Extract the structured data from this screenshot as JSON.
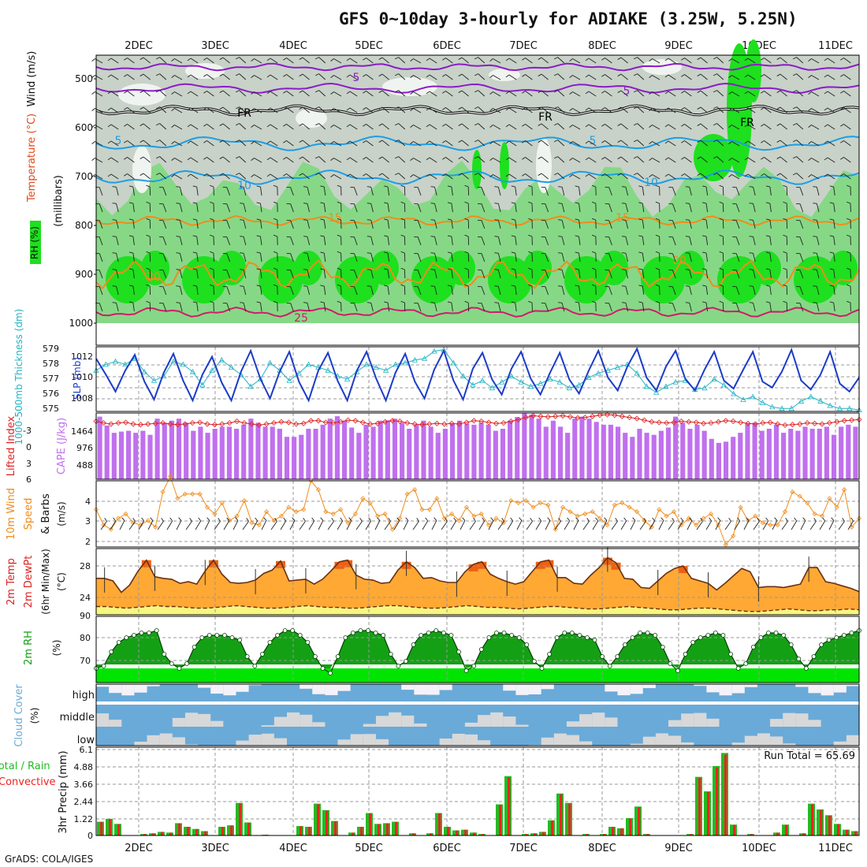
{
  "title": "GFS 0~10day 3-hourly for ADIAKE (3.25W, 5.25N)",
  "footer": "GrADS: COLA/IGES",
  "days": [
    "2DEC",
    "3DEC",
    "4DEC",
    "5DEC",
    "6DEC",
    "7DEC",
    "8DEC",
    "9DEC",
    "10DEC",
    "11DEC"
  ],
  "panels": {
    "upper": {
      "ylabel_unit": "(millibars)",
      "ylabel_wind": "Wind (m/s)",
      "ylabel_temp": "Temperature (°C)",
      "ylabel_rh": "RH (%)",
      "yticks": [
        "500",
        "600",
        "700",
        "800",
        "900",
        "1000"
      ],
      "contour_labels": [
        "5",
        "5",
        "FR",
        "FR",
        "FR",
        "5",
        "5",
        "10",
        "10",
        "15",
        "15",
        "20",
        "20",
        "25"
      ]
    },
    "thickness": {
      "ylabel_left": "1000-500mb Thickness (dm)",
      "ylabel_right": "SLP (mb)",
      "yticks_left": [
        "579",
        "578",
        "577",
        "576",
        "575"
      ],
      "yticks_right": [
        "1012",
        "1010",
        "1008"
      ]
    },
    "cape": {
      "ylabel_left": "Lifted Index",
      "ylabel_right": "CAPE (J/kg)",
      "yticks_left": [
        "-3",
        "0",
        "3",
        "6"
      ],
      "yticks_right": [
        "1464",
        "976",
        "488"
      ]
    },
    "wind10": {
      "ylabel_1": "10m Wind",
      "ylabel_2": "Speed",
      "ylabel_3": "& Barbs",
      "ylabel_unit": "(m/s)",
      "yticks": [
        "4",
        "3",
        "2"
      ]
    },
    "temp2m": {
      "ylabel_1": "2m Temp",
      "ylabel_2": "2m DewPt",
      "ylabel_3": "(6hr Min/Max)",
      "ylabel_unit": "(°C)",
      "yticks": [
        "28",
        "24"
      ]
    },
    "rh2m": {
      "ylabel": "2m RH",
      "ylabel_unit": "(%)",
      "yticks": [
        "90",
        "80",
        "70"
      ]
    },
    "cloud": {
      "ylabel": "Cloud Cover",
      "ylabel_unit": "(%)",
      "levels": [
        "high",
        "middle",
        "low"
      ]
    },
    "precip": {
      "ylabel": "3hr Precip (mm)",
      "legend_total": "Total / Rain",
      "legend_conv": "Convective",
      "run_total": "Run Total = 65.69",
      "yticks": [
        "6.1",
        "4.88",
        "3.66",
        "2.44",
        "1.22",
        "0"
      ]
    }
  },
  "colors": {
    "rh_light": "#c8d2c8",
    "rh_mid": "#86d886",
    "rh_high": "#1ee01e",
    "purple": "#8c1cc8",
    "blue": "#1c9ee6",
    "orange": "#f08c1c",
    "magenta": "#d01c6c",
    "slp": "#1c3cc8",
    "thickness": "#22b4c4",
    "cape": "#c070ee",
    "li": "#dd2222",
    "temp_fill": "#ffa834",
    "dew_fill": "#f6f680",
    "rh2m_dark": "#14a014",
    "rh2m_bright": "#00e400",
    "cloud_blue": "#6aaad8",
    "cloud_grey": "#d8d8d8",
    "precip_green": "#22bb22",
    "precip_red": "#ee2222"
  },
  "chart_data": [
    {
      "type": "line",
      "name": "slp",
      "ylim": [
        1006.5,
        1013
      ],
      "values": [
        1011.8,
        1010.2,
        1008.5,
        1010.6,
        1012.2,
        1009.5,
        1007.7,
        1010.4,
        1012.3,
        1009.6,
        1007.6,
        1010.2,
        1012.0,
        1009.4,
        1007.6,
        1010.5,
        1012.6,
        1009.8,
        1007.8,
        1010.5,
        1012.5,
        1009.5,
        1007.6,
        1010.6,
        1012.4,
        1009.6,
        1007.6,
        1010.6,
        1012.5,
        1009.8,
        1007.6,
        1010.4,
        1012.3,
        1009.5,
        1007.8,
        1010.7,
        1012.6,
        1009.6,
        1007.7,
        1010.8,
        1012.4,
        1009.7,
        1008.2,
        1010.8,
        1012.5,
        1009.8,
        1008.2,
        1010.4,
        1012.4,
        1009.7,
        1008.3,
        1010.6,
        1012.6,
        1009.9,
        1008.6,
        1011.0,
        1012.8,
        1009.9,
        1008.6,
        1011.0,
        1012.6,
        1009.8,
        1008.6,
        1010.7,
        1012.5,
        1009.6,
        1008.8,
        1010.7,
        1012.5,
        1009.5,
        1008.9,
        1010.5,
        1012.7,
        1009.6,
        1008.7,
        1010.2,
        1012.5,
        1009.3,
        1008.5,
        1009.9
      ]
    },
    {
      "type": "line",
      "name": "thickness",
      "ylim": [
        574.8,
        579.2
      ],
      "values": [
        577.6,
        578.0,
        578.2,
        578.0,
        578.4,
        577.5,
        576.9,
        577.2,
        578.2,
        578.0,
        577.5,
        576.6,
        577.6,
        578.3,
        577.8,
        577.3,
        576.5,
        577.0,
        578.1,
        577.6,
        576.9,
        577.4,
        578.0,
        577.8,
        577.6,
        577.2,
        577.0,
        577.5,
        578.0,
        577.8,
        577.6,
        578.0,
        578.1,
        578.3,
        578.4,
        578.9,
        579.0,
        578.1,
        577.2,
        576.6,
        576.9,
        576.4,
        576.8,
        577.2,
        576.8,
        576.5,
        576.7,
        577.0,
        576.8,
        576.4,
        576.6,
        577.1,
        577.4,
        577.6,
        577.8,
        578.0,
        577.4,
        576.5,
        576.1,
        576.5,
        576.8,
        576.9,
        576.3,
        576.4,
        577.0,
        576.6,
        576.0,
        575.6,
        575.8,
        575.4,
        575.1,
        575.0,
        575.0,
        575.5,
        575.8,
        575.5,
        575.2,
        575.0,
        575.0,
        574.9
      ]
    },
    {
      "type": "bar",
      "name": "cape",
      "ylim": [
        0,
        1640
      ],
      "values": [
        1550,
        1330,
        1150,
        1180,
        1200,
        1150,
        1200,
        1100,
        1500,
        1400,
        1450,
        1500,
        1400,
        1200,
        1300,
        1150,
        1250,
        1300,
        1300,
        1250,
        1350,
        1500,
        1400,
        1300,
        1300,
        1250,
        1050,
        1050,
        1100,
        1250,
        1250,
        1350,
        1500,
        1560,
        1450,
        1280,
        1150,
        1350,
        1300,
        1450,
        1460,
        1500,
        1400,
        1250,
        1350,
        1450,
        1300,
        1150,
        1250,
        1380,
        1450,
        1380,
        1350,
        1400,
        1350,
        1200,
        1250,
        1450,
        1540,
        1650,
        1600,
        1500,
        1300,
        1450,
        1300,
        1150,
        1500,
        1550,
        1500,
        1420,
        1350,
        1350,
        1300,
        1150,
        1050,
        1250,
        1150,
        1100,
        1200,
        1280,
        1550,
        1400,
        1250,
        1350,
        1200,
        1000,
        900,
        930,
        1050,
        1150,
        1380,
        1400,
        1200,
        1250,
        1350,
        1150,
        1250,
        1200,
        1300,
        1250,
        1250,
        1300,
        1100,
        1300,
        1350,
        1300
      ]
    },
    {
      "type": "line",
      "name": "lifted_index",
      "ylim": [
        -6,
        6
      ],
      "values": [
        -4.5,
        -4.2,
        -4.0,
        -4.2,
        -4.3,
        -4.0,
        -3.9,
        -4.0,
        -4.1,
        -4.2,
        -4.0,
        -3.9,
        -4.0,
        -4.2,
        -4.3,
        -4.0,
        -3.9,
        -4.0,
        -4.2,
        -4.5,
        -4.2,
        -4.0,
        -3.8,
        -4.0,
        -4.2,
        -4.4,
        -4.3,
        -4.0,
        -4.1,
        -4.6,
        -4.6,
        -4.3,
        -4.2,
        -4.4,
        -4.7,
        -4.6,
        -4.3,
        -4.0,
        -4.1,
        -4.4,
        -4.6,
        -4.5,
        -4.2,
        -4.0,
        -3.9,
        -4.0,
        -4.1,
        -4.0,
        -4.1,
        -4.0,
        -4.3,
        -4.6,
        -4.5,
        -4.3,
        -4.1,
        -4.2,
        -4.5,
        -4.8,
        -5.2,
        -5.5,
        -5.4,
        -5.3,
        -5.4,
        -5.5,
        -5.3,
        -5.1,
        -5.2,
        -5.4,
        -5.6,
        -5.7,
        -5.6,
        -5.4,
        -5.2,
        -5.0,
        -4.7,
        -4.4,
        -4.3,
        -4.2,
        -4.3,
        -4.5,
        -4.4,
        -4.3,
        -4.1,
        -4.2,
        -4.4,
        -4.6,
        -4.5,
        -4.3,
        -4.1,
        -4.0,
        -4.2,
        -4.3,
        -4.0,
        -3.8,
        -3.9,
        -4.0,
        -4.2,
        -4.1,
        -4.0,
        -4.2,
        -4.4,
        -4.6,
        -4.7,
        -4.8
      ]
    },
    {
      "type": "line",
      "name": "wind10_speed",
      "ylim": [
        1.8,
        4.8
      ],
      "values": [
        3.5,
        2.8,
        2.6,
        3.1,
        3.3,
        2.9,
        2.8,
        3.0,
        2.7,
        4.3,
        5.0,
        4.0,
        4.2,
        4.2,
        4.2,
        3.6,
        3.3,
        3.8,
        3.0,
        3.2,
        3.9,
        2.9,
        2.8,
        3.4,
        3.0,
        3.2,
        3.6,
        3.4,
        3.5,
        4.8,
        4.4,
        3.4,
        3.3,
        3.5,
        2.9,
        3.3,
        4.0,
        3.8,
        3.2,
        3.3,
        2.6,
        3.1,
        4.2,
        4.4,
        3.5,
        3.5,
        4.0,
        3.1,
        3.3,
        3.0,
        3.6,
        3.2,
        3.3,
        2.8,
        3.1,
        2.9,
        3.9,
        3.8,
        3.9,
        3.6,
        3.8,
        3.7,
        2.6,
        3.6,
        3.4,
        3.2,
        3.3,
        3.4,
        3.1,
        2.8,
        3.7,
        3.8,
        3.6,
        3.4,
        3.0,
        2.7,
        3.5,
        3.2,
        3.4,
        2.8,
        3.1,
        2.8,
        3.1,
        3.3,
        2.8,
        1.9,
        2.3,
        3.6,
        3.0,
        3.2,
        2.9,
        2.8,
        2.8,
        3.4,
        4.3,
        4.1,
        3.8,
        3.3,
        3.2,
        4.0,
        3.6,
        4.4,
        2.7,
        3.1
      ]
    },
    {
      "type": "area",
      "name": "temp_2m",
      "ylim": [
        22,
        30
      ],
      "values": [
        26.4,
        26.4,
        26.1,
        24.7,
        25.6,
        27.3,
        28.6,
        26.6,
        26.4,
        26.3,
        25.8,
        26.0,
        25.7,
        27.3,
        28.6,
        26.9,
        25.9,
        25.8,
        25.9,
        26.2,
        27.0,
        27.4,
        28.5,
        26.1,
        26.2,
        26.3,
        25.7,
        26.3,
        27.3,
        28.4,
        28.6,
        26.8,
        26.3,
        26.2,
        25.8,
        25.9,
        27.4,
        28.4,
        27.7,
        26.4,
        26.5,
        26.1,
        25.9,
        25.9,
        27.2,
        28.1,
        28.4,
        26.9,
        26.4,
        26.0,
        25.7,
        26.0,
        27.2,
        28.4,
        28.6,
        26.5,
        26.5,
        25.8,
        25.7,
        26.8,
        27.7,
        28.9,
        28.3,
        26.4,
        26.3,
        25.3,
        25.2,
        26.1,
        27.0,
        27.6,
        27.9,
        26.4,
        26.1,
        25.8,
        25.0,
        25.8,
        26.7,
        27.6,
        27.2,
        25.3,
        25.4,
        25.4,
        25.3,
        25.5,
        25.7,
        27.7,
        27.7,
        26.0,
        25.8,
        25.5,
        25.2,
        24.8
      ]
    },
    {
      "type": "line",
      "name": "dewpoint_2m",
      "ylim": [
        22,
        30
      ],
      "values": [
        23.0,
        23.0,
        22.9,
        22.8,
        22.9,
        23.0,
        23.1,
        23.0,
        23.0,
        22.9,
        22.8,
        22.8,
        22.9,
        23.0,
        23.1,
        23.0,
        22.9,
        22.8,
        22.8,
        22.9,
        23.0,
        23.1,
        23.0,
        22.9,
        22.9,
        22.8,
        22.8,
        22.9,
        23.0,
        23.1,
        23.1,
        23.0,
        22.9,
        22.8,
        22.8,
        22.9,
        23.0,
        23.1,
        23.0,
        22.9,
        22.9,
        22.8,
        22.7,
        22.8,
        22.9,
        23.0,
        23.0,
        22.9,
        22.8,
        22.7,
        22.7,
        22.8,
        22.9,
        23.0,
        22.9,
        22.8,
        22.7,
        22.6,
        22.6,
        22.7,
        22.8,
        22.8,
        22.7,
        22.6,
        22.5,
        22.4,
        22.4,
        22.5,
        22.6,
        22.7,
        22.6,
        22.5,
        22.5,
        22.6,
        22.6,
        22.7,
        22.6
      ]
    },
    {
      "type": "area",
      "name": "rh_2m",
      "ylim": [
        64,
        92
      ],
      "values": [
        70,
        71,
        77,
        81,
        83,
        84,
        85,
        85,
        86,
        76,
        72,
        70,
        72,
        79,
        83,
        84,
        84,
        84,
        83,
        82,
        75,
        71,
        76,
        81,
        84,
        86,
        86,
        84,
        81,
        75,
        70,
        68,
        75,
        83,
        85,
        86,
        86,
        85,
        84,
        76,
        71,
        73,
        80,
        84,
        85,
        86,
        85,
        84,
        77,
        69,
        71,
        78,
        83,
        85,
        85,
        84,
        83,
        80,
        73,
        70,
        76,
        83,
        85,
        85,
        84,
        83,
        82,
        75,
        71,
        75,
        80,
        83,
        85,
        85,
        84,
        79,
        72,
        69,
        76,
        81,
        83,
        84,
        85,
        84,
        76,
        70,
        72,
        79,
        83,
        85,
        85,
        84,
        80,
        74,
        70,
        75,
        80,
        82,
        83,
        84,
        85,
        86
      ]
    },
    {
      "type": "bar",
      "name": "precip_3hr",
      "ylim": [
        0,
        6.1
      ],
      "values": [
        0.95,
        1.15,
        0.8,
        0.0,
        0.0,
        0.1,
        0.15,
        0.25,
        0.2,
        0.85,
        0.6,
        0.45,
        0.3,
        0.0,
        0.6,
        0.7,
        2.25,
        0.9,
        0.0,
        0.05,
        0.0,
        0.0,
        0.0,
        0.65,
        0.6,
        2.2,
        1.75,
        1.0,
        0.0,
        0.2,
        0.6,
        1.55,
        0.8,
        0.85,
        0.95,
        0.0,
        0.15,
        0.0,
        0.15,
        1.55,
        0.6,
        0.35,
        0.4,
        0.2,
        0.1,
        0.0,
        2.15,
        4.1,
        0.0,
        0.1,
        0.15,
        0.25,
        1.05,
        2.9,
        2.25,
        0.0,
        0.1,
        0.0,
        0.1,
        0.6,
        0.5,
        1.2,
        2.0,
        0.1,
        0.0,
        0.0,
        0.0,
        0.0,
        0.1,
        4.05,
        3.05,
        4.8,
        5.7,
        0.75,
        0.0,
        0.1,
        0.0,
        0.0,
        0.2,
        0.75,
        0.0,
        0.15,
        2.2,
        1.8,
        1.4,
        0.8,
        0.4,
        0.3
      ]
    }
  ]
}
